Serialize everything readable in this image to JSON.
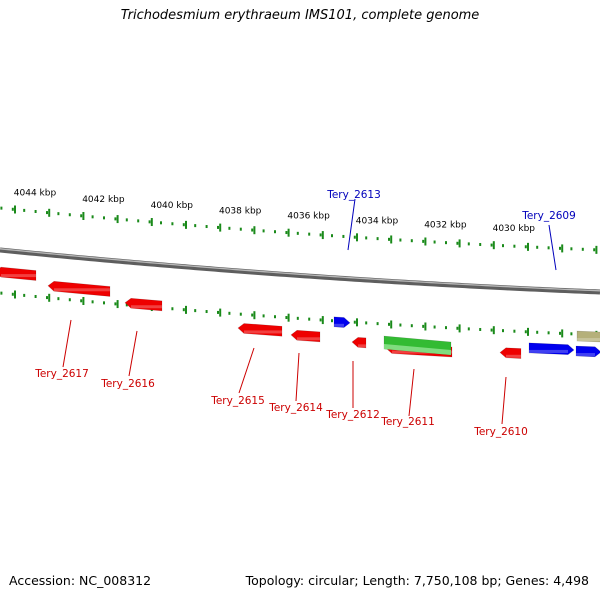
{
  "title": "Trichodesmium erythraeum IMS101, complete genome",
  "footer": {
    "accession": "Accession: NC_008312",
    "summary": "Topology: circular; Length: 7,750,108 bp; Genes: 4,498"
  },
  "colors": {
    "backbone": "#808080",
    "ticks": "#1a8a1a",
    "forward_gene": "#0000ee",
    "reverse_gene": "#ee0000",
    "rna_gene": "#33bb33",
    "other_gene": "#b5b07a",
    "forward_label": "#0000bb",
    "reverse_label": "#cc0000"
  },
  "scale": {
    "unit": "kbp",
    "ticks": [
      {
        "kbp": 4044,
        "label": "4044 kbp"
      },
      {
        "kbp": 4042,
        "label": "4042 kbp"
      },
      {
        "kbp": 4040,
        "label": "4040 kbp"
      },
      {
        "kbp": 4038,
        "label": "4038 kbp"
      },
      {
        "kbp": 4036,
        "label": "4036 kbp"
      },
      {
        "kbp": 4034,
        "label": "4034 kbp"
      },
      {
        "kbp": 4032,
        "label": "4032 kbp"
      },
      {
        "kbp": 4030,
        "label": "4030 kbp"
      }
    ]
  },
  "genes": [
    {
      "label": "Tery_2617",
      "strand": "reverse",
      "kind": "cds"
    },
    {
      "label": "Tery_2616",
      "strand": "reverse",
      "kind": "cds"
    },
    {
      "label": "Tery_2615",
      "strand": "reverse",
      "kind": "cds"
    },
    {
      "label": "Tery_2614",
      "strand": "reverse",
      "kind": "cds"
    },
    {
      "label": "Tery_2613",
      "strand": "forward",
      "kind": "cds"
    },
    {
      "label": "Tery_2612",
      "strand": "reverse",
      "kind": "cds"
    },
    {
      "label": "Tery_2611",
      "strand": "reverse",
      "kind": "rna"
    },
    {
      "label": "Tery_2610",
      "strand": "reverse",
      "kind": "cds"
    },
    {
      "label": "Tery_2609",
      "strand": "forward",
      "kind": "cds"
    }
  ]
}
